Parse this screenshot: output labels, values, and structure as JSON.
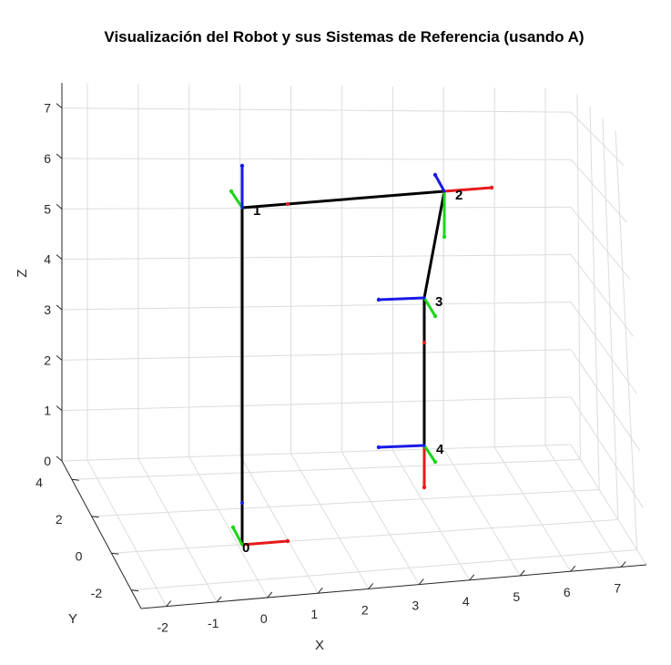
{
  "chart_data": {
    "type": "3d-line",
    "title": "Visualización del Robot y sus Sistemas de Referencia (usando A)",
    "xlabel": "X",
    "ylabel": "Y",
    "zlabel": "Z",
    "xlim": [
      -2.5,
      7.5
    ],
    "ylim": [
      -3,
      5
    ],
    "zlim": [
      0,
      7.5
    ],
    "x_ticks": [
      "-2",
      "-1",
      "0",
      "1",
      "2",
      "3",
      "4",
      "5",
      "6",
      "7"
    ],
    "y_ticks": [
      "-2",
      "0",
      "2",
      "4"
    ],
    "z_ticks": [
      "0",
      "1",
      "2",
      "3",
      "4",
      "5",
      "6",
      "7"
    ],
    "grid": true,
    "links": [
      {
        "from": "0",
        "to": "1"
      },
      {
        "from": "1",
        "to": "2"
      },
      {
        "from": "2",
        "to": "3"
      },
      {
        "from": "3",
        "to": "4"
      }
    ],
    "frames": [
      {
        "label": "0",
        "x_axis": "+X",
        "y_axis": "+Z/-Y",
        "z_axis": "+Z"
      },
      {
        "label": "1",
        "x_axis": "+X",
        "y_axis": "-Y/+Z",
        "z_axis": "+Z"
      },
      {
        "label": "2",
        "x_axis": "+X",
        "y_axis": "-Z",
        "z_axis": "-Y"
      },
      {
        "label": "3",
        "x_axis": "-Z",
        "y_axis": "+Y",
        "z_axis": "-X"
      },
      {
        "label": "4",
        "x_axis": "-Z",
        "y_axis": "+Y",
        "z_axis": "-X"
      }
    ],
    "colors": {
      "x_axis": "#e61a1a",
      "y_axis": "#1ad61a",
      "z_axis": "#1a1ae6",
      "link": "#000000"
    }
  }
}
